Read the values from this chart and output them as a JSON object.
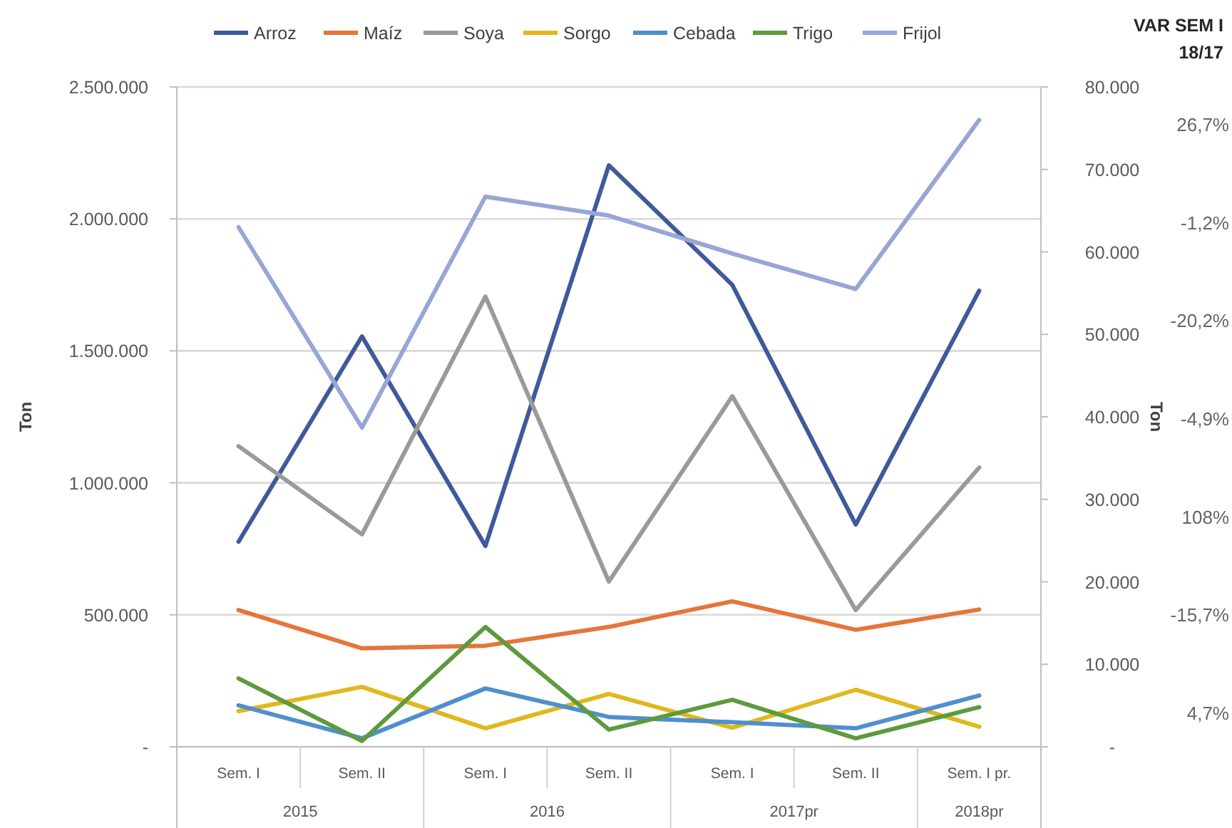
{
  "chart_data": {
    "type": "line",
    "categories": [
      "Sem. I",
      "Sem. II",
      "Sem. I",
      "Sem. II",
      "Sem. I",
      "Sem. II",
      "Sem. I pr."
    ],
    "series": [
      {
        "name": "Arroz",
        "color": "#3f5a9a",
        "values": [
          777000,
          1555000,
          761000,
          2203000,
          1750000,
          842000,
          1728000
        ]
      },
      {
        "name": "Maíz",
        "color": "#e5753a",
        "values": [
          518000,
          373000,
          383000,
          454000,
          551000,
          443000,
          520000
        ]
      },
      {
        "name": "Soya",
        "color": "#9a9a9a",
        "values": [
          1139000,
          805000,
          1706000,
          626000,
          1328000,
          518000,
          1058000
        ]
      },
      {
        "name": "Sorgo",
        "color": "#e0b81c",
        "values": [
          135000,
          227000,
          70000,
          200000,
          72000,
          216000,
          76000
        ]
      },
      {
        "name": "Cebada",
        "color": "#4f8fce",
        "values": [
          157000,
          32000,
          221000,
          113000,
          93000,
          70000,
          194000
        ]
      },
      {
        "name": "Trigo",
        "color": "#5e9a3e",
        "values": [
          259000,
          22000,
          454000,
          65000,
          178000,
          32000,
          150000
        ]
      },
      {
        "name": "Frijol",
        "color": "#97a6d6",
        "axis": "y2",
        "values": [
          63000,
          38700,
          66700,
          64400,
          59800,
          55500,
          76000
        ]
      }
    ],
    "ylabel": "Ton",
    "y2label": "Ton",
    "ylim": [
      0,
      2500000
    ],
    "yticks": [
      {
        "value": 0,
        "label": "-"
      },
      {
        "value": 500000,
        "label": "500.000"
      },
      {
        "value": 1000000,
        "label": "1.000.000"
      },
      {
        "value": 1500000,
        "label": "1.500.000"
      },
      {
        "value": 2000000,
        "label": "2.000.000"
      },
      {
        "value": 2500000,
        "label": "2.500.000"
      }
    ],
    "y2lim": [
      0,
      80000
    ],
    "y2ticks": [
      {
        "value": 0,
        "label": "-"
      },
      {
        "value": 10000,
        "label": "10.000"
      },
      {
        "value": 20000,
        "label": "20.000"
      },
      {
        "value": 30000,
        "label": "30.000"
      },
      {
        "value": 40000,
        "label": "40.000"
      },
      {
        "value": 50000,
        "label": "50.000"
      },
      {
        "value": 60000,
        "label": "60.000"
      },
      {
        "value": 70000,
        "label": "70.000"
      },
      {
        "value": 80000,
        "label": "80.000"
      }
    ],
    "grid": "y",
    "legend": "top",
    "marker": "none",
    "line_style": "solid",
    "annotations": [
      "VAR SEM I 18/17",
      "26,7%",
      "-1,2%",
      "-20,2%",
      "-4,9%",
      "108%",
      "-15,7%",
      "4,7%",
      "2015",
      "2016",
      "2017pr",
      "2018pr"
    ]
  }
}
